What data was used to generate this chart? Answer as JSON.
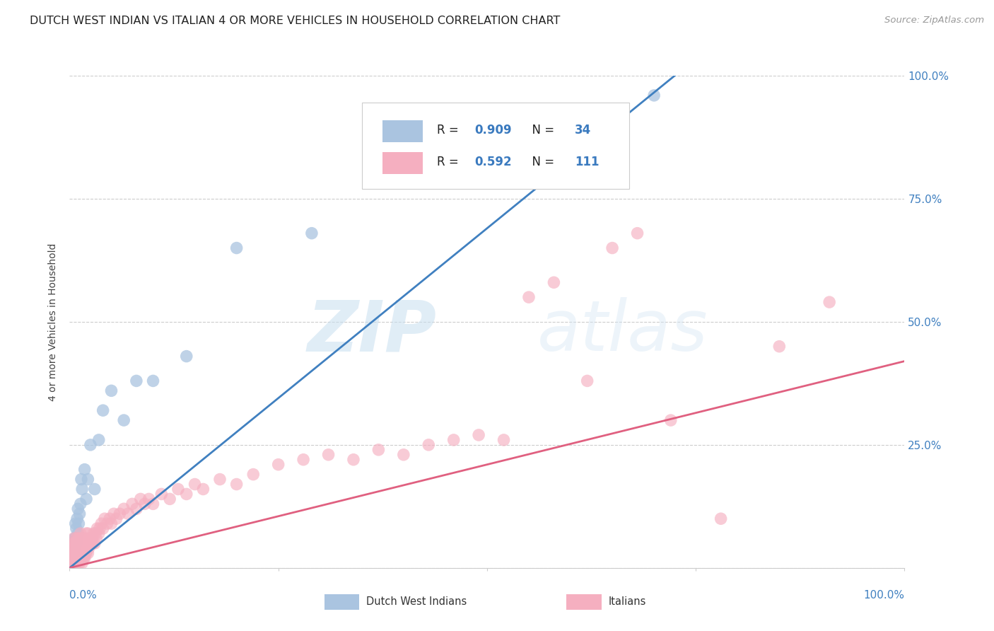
{
  "title": "DUTCH WEST INDIAN VS ITALIAN 4 OR MORE VEHICLES IN HOUSEHOLD CORRELATION CHART",
  "source": "Source: ZipAtlas.com",
  "ylabel": "4 or more Vehicles in Household",
  "blue_R": 0.909,
  "blue_N": 34,
  "pink_R": 0.592,
  "pink_N": 111,
  "blue_color": "#aac4e0",
  "pink_color": "#f5afc0",
  "blue_line_color": "#4080c0",
  "pink_line_color": "#e06080",
  "legend_label_blue": "Dutch West Indians",
  "legend_label_pink": "Italians",
  "watermark_zip": "ZIP",
  "watermark_atlas": "atlas",
  "background_color": "#ffffff",
  "grid_color": "#cccccc",
  "blue_slope": 1.38,
  "blue_intercept": 0.0,
  "pink_slope": 0.42,
  "pink_intercept": 0.0,
  "blue_x": [
    0.003,
    0.004,
    0.005,
    0.005,
    0.006,
    0.006,
    0.007,
    0.007,
    0.008,
    0.008,
    0.009,
    0.009,
    0.01,
    0.01,
    0.011,
    0.012,
    0.013,
    0.014,
    0.015,
    0.018,
    0.02,
    0.022,
    0.025,
    0.03,
    0.035,
    0.04,
    0.05,
    0.065,
    0.08,
    0.1,
    0.14,
    0.2,
    0.29,
    0.7
  ],
  "blue_y": [
    0.02,
    0.03,
    0.03,
    0.05,
    0.04,
    0.06,
    0.06,
    0.09,
    0.05,
    0.08,
    0.06,
    0.1,
    0.07,
    0.12,
    0.09,
    0.11,
    0.13,
    0.18,
    0.16,
    0.2,
    0.14,
    0.18,
    0.25,
    0.16,
    0.26,
    0.32,
    0.36,
    0.3,
    0.38,
    0.38,
    0.43,
    0.65,
    0.68,
    0.96
  ],
  "pink_x": [
    0.001,
    0.002,
    0.002,
    0.003,
    0.003,
    0.003,
    0.004,
    0.004,
    0.004,
    0.005,
    0.005,
    0.005,
    0.005,
    0.006,
    0.006,
    0.006,
    0.007,
    0.007,
    0.007,
    0.008,
    0.008,
    0.008,
    0.009,
    0.009,
    0.01,
    0.01,
    0.01,
    0.011,
    0.011,
    0.012,
    0.012,
    0.012,
    0.013,
    0.013,
    0.013,
    0.014,
    0.014,
    0.015,
    0.015,
    0.015,
    0.016,
    0.016,
    0.017,
    0.017,
    0.018,
    0.018,
    0.019,
    0.019,
    0.02,
    0.02,
    0.021,
    0.022,
    0.022,
    0.023,
    0.024,
    0.025,
    0.026,
    0.027,
    0.028,
    0.029,
    0.03,
    0.031,
    0.032,
    0.033,
    0.035,
    0.036,
    0.038,
    0.04,
    0.042,
    0.045,
    0.048,
    0.05,
    0.053,
    0.056,
    0.06,
    0.065,
    0.07,
    0.075,
    0.08,
    0.085,
    0.09,
    0.095,
    0.1,
    0.11,
    0.12,
    0.13,
    0.14,
    0.15,
    0.16,
    0.18,
    0.2,
    0.22,
    0.25,
    0.28,
    0.31,
    0.34,
    0.37,
    0.4,
    0.43,
    0.46,
    0.49,
    0.52,
    0.55,
    0.58,
    0.62,
    0.65,
    0.68,
    0.72,
    0.78,
    0.85,
    0.91
  ],
  "pink_y": [
    0.01,
    0.02,
    0.03,
    0.01,
    0.02,
    0.04,
    0.01,
    0.03,
    0.05,
    0.01,
    0.02,
    0.04,
    0.06,
    0.01,
    0.03,
    0.05,
    0.01,
    0.03,
    0.05,
    0.01,
    0.03,
    0.06,
    0.02,
    0.04,
    0.01,
    0.03,
    0.06,
    0.02,
    0.04,
    0.01,
    0.03,
    0.06,
    0.02,
    0.04,
    0.07,
    0.02,
    0.05,
    0.01,
    0.03,
    0.06,
    0.02,
    0.05,
    0.02,
    0.05,
    0.02,
    0.05,
    0.03,
    0.06,
    0.03,
    0.07,
    0.04,
    0.03,
    0.07,
    0.04,
    0.05,
    0.06,
    0.05,
    0.06,
    0.05,
    0.07,
    0.05,
    0.07,
    0.06,
    0.08,
    0.07,
    0.08,
    0.09,
    0.08,
    0.1,
    0.09,
    0.1,
    0.09,
    0.11,
    0.1,
    0.11,
    0.12,
    0.11,
    0.13,
    0.12,
    0.14,
    0.13,
    0.14,
    0.13,
    0.15,
    0.14,
    0.16,
    0.15,
    0.17,
    0.16,
    0.18,
    0.17,
    0.19,
    0.21,
    0.22,
    0.23,
    0.22,
    0.24,
    0.23,
    0.25,
    0.26,
    0.27,
    0.26,
    0.55,
    0.58,
    0.38,
    0.65,
    0.68,
    0.3,
    0.1,
    0.45,
    0.54
  ]
}
